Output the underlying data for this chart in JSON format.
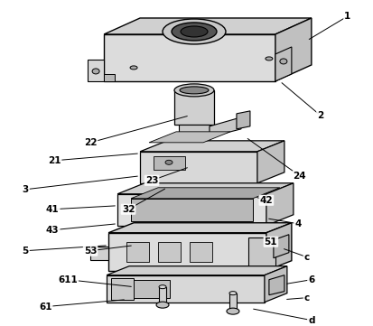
{
  "background_color": "#ffffff",
  "line_color": "#000000",
  "figsize": [
    4.14,
    3.61
  ],
  "dpi": 100,
  "labels_info": [
    [
      "1",
      385,
      18,
      340,
      45
    ],
    [
      "2",
      355,
      128,
      310,
      90
    ],
    [
      "21",
      60,
      178,
      155,
      170
    ],
    [
      "22",
      100,
      158,
      210,
      128
    ],
    [
      "23",
      168,
      200,
      210,
      185
    ],
    [
      "24",
      332,
      195,
      272,
      152
    ],
    [
      "3",
      28,
      210,
      155,
      195
    ],
    [
      "32",
      142,
      232,
      185,
      208
    ],
    [
      "41",
      58,
      232,
      130,
      228
    ],
    [
      "42",
      295,
      222,
      282,
      218
    ],
    [
      "4",
      330,
      248,
      295,
      242
    ],
    [
      "43",
      58,
      255,
      130,
      248
    ],
    [
      "51",
      300,
      268,
      292,
      263
    ],
    [
      "5",
      28,
      278,
      120,
      272
    ],
    [
      "53",
      100,
      278,
      148,
      272
    ],
    [
      "c",
      340,
      285,
      312,
      275
    ],
    [
      "6",
      345,
      310,
      315,
      315
    ],
    [
      "611",
      75,
      310,
      148,
      318
    ],
    [
      "c",
      340,
      330,
      315,
      332
    ],
    [
      "61",
      50,
      340,
      140,
      332
    ],
    [
      "d",
      345,
      355,
      278,
      342
    ]
  ]
}
